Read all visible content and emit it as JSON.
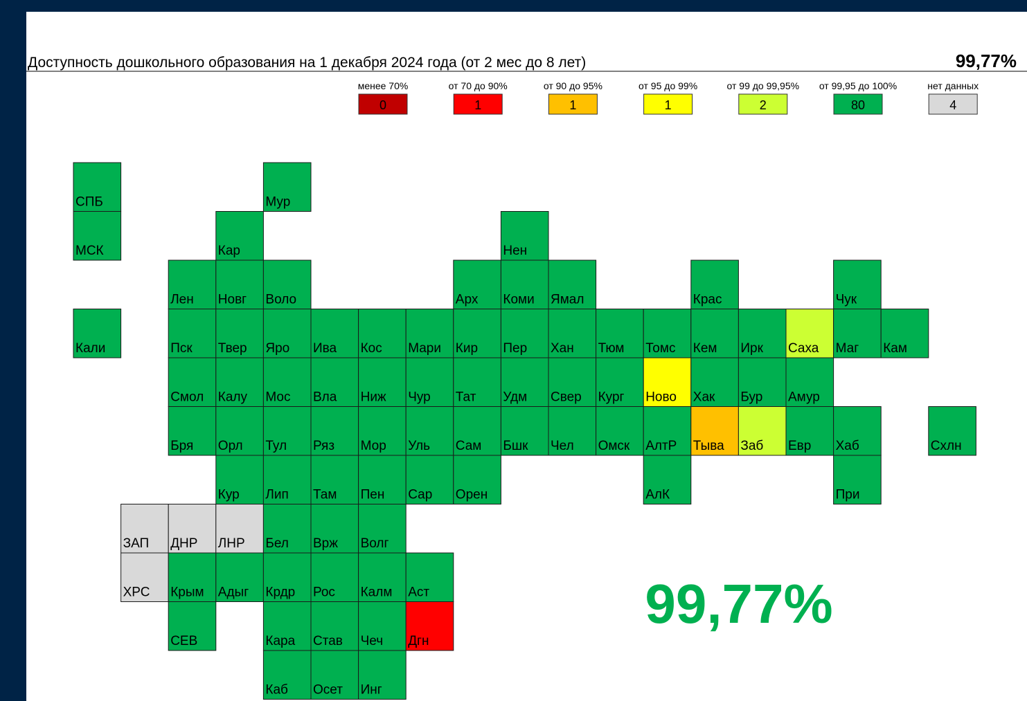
{
  "header": {
    "title": "Доступность дошкольного образования на 1 декабря 2024 года (от 2 мес до 8 лет)",
    "total": "99,77%"
  },
  "legend": [
    {
      "label": "менее 70%",
      "count": 0,
      "color": "#c00000"
    },
    {
      "label": "от 70 до 90%",
      "count": 1,
      "color": "#ff0000"
    },
    {
      "label": "от 90 до 95%",
      "count": 1,
      "color": "#ffc000"
    },
    {
      "label": "от 95 до 99%",
      "count": 1,
      "color": "#ffff00"
    },
    {
      "label": "от 99 до 99,95%",
      "count": 2,
      "color": "#ccff33"
    },
    {
      "label": "от 99,95 до 100%",
      "count": 80,
      "color": "#00b050"
    },
    {
      "label": "нет данных",
      "count": 4,
      "color": "#d9d9d9"
    }
  ],
  "tiles": [
    {
      "label": "СПБ",
      "color": "#00b050"
    },
    {
      "label": "Мур",
      "color": "#00b050"
    },
    {
      "label": "МСК",
      "color": "#00b050"
    },
    {
      "label": "Кар",
      "color": "#00b050"
    },
    {
      "label": "Нен",
      "color": "#00b050"
    },
    {
      "label": "Лен",
      "color": "#00b050"
    },
    {
      "label": "Новг",
      "color": "#00b050"
    },
    {
      "label": "Воло",
      "color": "#00b050"
    },
    {
      "label": "Арх",
      "color": "#00b050"
    },
    {
      "label": "Коми",
      "color": "#00b050"
    },
    {
      "label": "Ямал",
      "color": "#00b050"
    },
    {
      "label": "Крас",
      "color": "#00b050"
    },
    {
      "label": "Чук",
      "color": "#00b050"
    },
    {
      "label": "Кали",
      "color": "#00b050"
    },
    {
      "label": "Пск",
      "color": "#00b050"
    },
    {
      "label": "Твер",
      "color": "#00b050"
    },
    {
      "label": "Яро",
      "color": "#00b050"
    },
    {
      "label": "Ива",
      "color": "#00b050"
    },
    {
      "label": "Кос",
      "color": "#00b050"
    },
    {
      "label": "Мари",
      "color": "#00b050"
    },
    {
      "label": "Кир",
      "color": "#00b050"
    },
    {
      "label": "Пер",
      "color": "#00b050"
    },
    {
      "label": "Хан",
      "color": "#00b050"
    },
    {
      "label": "Тюм",
      "color": "#00b050"
    },
    {
      "label": "Томс",
      "color": "#00b050"
    },
    {
      "label": "Кем",
      "color": "#00b050"
    },
    {
      "label": "Ирк",
      "color": "#00b050"
    },
    {
      "label": "Саха",
      "color": "#ccff33"
    },
    {
      "label": "Маг",
      "color": "#00b050"
    },
    {
      "label": "Кам",
      "color": "#00b050"
    },
    {
      "label": "Смол",
      "color": "#00b050"
    },
    {
      "label": "Калу",
      "color": "#00b050"
    },
    {
      "label": "Мос",
      "color": "#00b050"
    },
    {
      "label": "Вла",
      "color": "#00b050"
    },
    {
      "label": "Ниж",
      "color": "#00b050"
    },
    {
      "label": "Чур",
      "color": "#00b050"
    },
    {
      "label": "Тат",
      "color": "#00b050"
    },
    {
      "label": "Удм",
      "color": "#00b050"
    },
    {
      "label": "Свер",
      "color": "#00b050"
    },
    {
      "label": "Кург",
      "color": "#00b050"
    },
    {
      "label": "Ново",
      "color": "#ffff00"
    },
    {
      "label": "Хак",
      "color": "#00b050"
    },
    {
      "label": "Бур",
      "color": "#00b050"
    },
    {
      "label": "Амур",
      "color": "#00b050"
    },
    {
      "label": "Бря",
      "color": "#00b050"
    },
    {
      "label": "Орл",
      "color": "#00b050"
    },
    {
      "label": "Тул",
      "color": "#00b050"
    },
    {
      "label": "Ряз",
      "color": "#00b050"
    },
    {
      "label": "Мор",
      "color": "#00b050"
    },
    {
      "label": "Уль",
      "color": "#00b050"
    },
    {
      "label": "Сам",
      "color": "#00b050"
    },
    {
      "label": "Бшк",
      "color": "#00b050"
    },
    {
      "label": "Чел",
      "color": "#00b050"
    },
    {
      "label": "Омск",
      "color": "#00b050"
    },
    {
      "label": "АлтР",
      "color": "#00b050"
    },
    {
      "label": "Тыва",
      "color": "#ffc000"
    },
    {
      "label": "Заб",
      "color": "#ccff33"
    },
    {
      "label": "Евр",
      "color": "#00b050"
    },
    {
      "label": "Хаб",
      "color": "#00b050"
    },
    {
      "label": "Схлн",
      "color": "#00b050"
    },
    {
      "label": "Кур",
      "color": "#00b050"
    },
    {
      "label": "Лип",
      "color": "#00b050"
    },
    {
      "label": "Там",
      "color": "#00b050"
    },
    {
      "label": "Пен",
      "color": "#00b050"
    },
    {
      "label": "Сар",
      "color": "#00b050"
    },
    {
      "label": "Орен",
      "color": "#00b050"
    },
    {
      "label": "АлК",
      "color": "#00b050"
    },
    {
      "label": "При",
      "color": "#00b050"
    },
    {
      "label": "ЗАП",
      "color": "#d9d9d9"
    },
    {
      "label": "ДНР",
      "color": "#d9d9d9"
    },
    {
      "label": "ЛНР",
      "color": "#d9d9d9"
    },
    {
      "label": "Бел",
      "color": "#00b050"
    },
    {
      "label": "Врж",
      "color": "#00b050"
    },
    {
      "label": "Волг",
      "color": "#00b050"
    },
    {
      "label": "ХРС",
      "color": "#d9d9d9"
    },
    {
      "label": "Крым",
      "color": "#00b050"
    },
    {
      "label": "Адыг",
      "color": "#00b050"
    },
    {
      "label": "Крдр",
      "color": "#00b050"
    },
    {
      "label": "Рос",
      "color": "#00b050"
    },
    {
      "label": "Калм",
      "color": "#00b050"
    },
    {
      "label": "Аст",
      "color": "#00b050"
    },
    {
      "label": "СЕВ",
      "color": "#00b050"
    },
    {
      "label": "Кара",
      "color": "#00b050"
    },
    {
      "label": "Став",
      "color": "#00b050"
    },
    {
      "label": "Чеч",
      "color": "#00b050"
    },
    {
      "label": "Дгн",
      "color": "#ff0000"
    },
    {
      "label": "Каб",
      "color": "#00b050"
    },
    {
      "label": "Осет",
      "color": "#00b050"
    },
    {
      "label": "Инг",
      "color": "#00b050"
    }
  ],
  "summary": "99,77%"
}
